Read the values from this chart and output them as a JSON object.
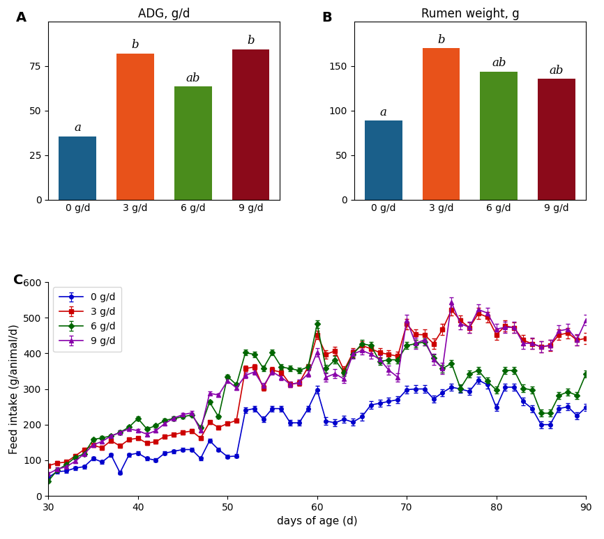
{
  "panel_A": {
    "title": "ADG, g/d",
    "categories": [
      "0 g/d",
      "3 g/d",
      "6 g/d",
      "9 g/d"
    ],
    "values": [
      35.5,
      82.0,
      63.5,
      84.5
    ],
    "colors": [
      "#1a5f8a",
      "#e8521a",
      "#4a8c1c",
      "#8b0a1a"
    ],
    "labels": [
      "a",
      "b",
      "ab",
      "b"
    ],
    "ylim": [
      0,
      100
    ],
    "yticks": [
      0,
      25,
      50,
      75
    ]
  },
  "panel_B": {
    "title": "Rumen weight, g",
    "categories": [
      "0 g/d",
      "3 g/d",
      "6 g/d",
      "9 g/d"
    ],
    "values": [
      89.0,
      170.0,
      144.0,
      136.0
    ],
    "colors": [
      "#1a5f8a",
      "#e8521a",
      "#4a8c1c",
      "#8b0a1a"
    ],
    "labels": [
      "a",
      "b",
      "ab",
      "ab"
    ],
    "ylim": [
      0,
      200
    ],
    "yticks": [
      0,
      50,
      100,
      150
    ]
  },
  "panel_C": {
    "ylabel": "Feed intake (g/animal/d)",
    "xlabel": "days of age (d)",
    "ylim": [
      0,
      600
    ],
    "yticks": [
      0,
      100,
      200,
      300,
      400,
      500,
      600
    ],
    "xlim": [
      30,
      90
    ],
    "xticks": [
      30,
      40,
      50,
      60,
      70,
      80,
      90
    ],
    "series": {
      "0 g/d": {
        "color": "#0000cc",
        "marker": "o",
        "days": [
          30,
          31,
          32,
          33,
          34,
          35,
          36,
          37,
          38,
          39,
          40,
          41,
          42,
          43,
          44,
          45,
          46,
          47,
          48,
          49,
          50,
          51,
          52,
          53,
          54,
          55,
          56,
          57,
          58,
          59,
          60,
          61,
          62,
          63,
          64,
          65,
          66,
          67,
          68,
          69,
          70,
          71,
          72,
          73,
          74,
          75,
          76,
          77,
          78,
          79,
          80,
          81,
          82,
          83,
          84,
          85,
          86,
          87,
          88,
          89,
          90
        ],
        "values": [
          52,
          68,
          70,
          78,
          82,
          105,
          95,
          115,
          65,
          115,
          120,
          105,
          100,
          120,
          125,
          130,
          130,
          105,
          155,
          130,
          110,
          112,
          240,
          245,
          215,
          245,
          245,
          205,
          205,
          245,
          298,
          210,
          205,
          215,
          207,
          222,
          255,
          260,
          265,
          270,
          298,
          300,
          300,
          272,
          290,
          305,
          300,
          293,
          325,
          312,
          248,
          305,
          305,
          265,
          245,
          200,
          200,
          245,
          250,
          225,
          248
        ],
        "errors": [
          5,
          5,
          5,
          5,
          5,
          5,
          5,
          5,
          5,
          5,
          5,
          5,
          5,
          5,
          5,
          5,
          5,
          5,
          5,
          5,
          5,
          5,
          8,
          8,
          8,
          8,
          8,
          8,
          8,
          8,
          10,
          10,
          10,
          10,
          10,
          10,
          10,
          10,
          10,
          10,
          10,
          10,
          10,
          10,
          10,
          10,
          10,
          10,
          10,
          10,
          10,
          10,
          10,
          10,
          10,
          10,
          10,
          10,
          10,
          10,
          10
        ]
      },
      "3 g/d": {
        "color": "#cc0000",
        "marker": "s",
        "days": [
          30,
          31,
          32,
          33,
          34,
          35,
          36,
          37,
          38,
          39,
          40,
          41,
          42,
          43,
          44,
          45,
          46,
          47,
          48,
          49,
          50,
          51,
          52,
          53,
          54,
          55,
          56,
          57,
          58,
          59,
          60,
          61,
          62,
          63,
          64,
          65,
          66,
          67,
          68,
          69,
          70,
          71,
          72,
          73,
          74,
          75,
          76,
          77,
          78,
          79,
          80,
          81,
          82,
          83,
          84,
          85,
          86,
          87,
          88,
          89,
          90
        ],
        "values": [
          85,
          92,
          95,
          112,
          130,
          142,
          135,
          155,
          140,
          158,
          162,
          148,
          152,
          167,
          172,
          178,
          182,
          162,
          207,
          192,
          203,
          212,
          357,
          362,
          303,
          353,
          347,
          313,
          317,
          362,
          452,
          397,
          407,
          352,
          402,
          422,
          413,
          402,
          397,
          392,
          482,
          453,
          452,
          427,
          467,
          522,
          492,
          472,
          512,
          502,
          452,
          477,
          472,
          437,
          427,
          418,
          422,
          452,
          457,
          437,
          442
        ],
        "errors": [
          5,
          5,
          5,
          5,
          5,
          5,
          5,
          5,
          5,
          5,
          5,
          5,
          5,
          5,
          5,
          5,
          5,
          5,
          5,
          5,
          5,
          5,
          8,
          8,
          8,
          8,
          8,
          8,
          8,
          8,
          12,
          12,
          12,
          12,
          12,
          12,
          12,
          12,
          12,
          12,
          15,
          15,
          15,
          15,
          15,
          15,
          15,
          15,
          15,
          15,
          15,
          15,
          15,
          15,
          15,
          15,
          15,
          15,
          15,
          15,
          15
        ]
      },
      "6 g/d": {
        "color": "#006600",
        "marker": "D",
        "days": [
          30,
          31,
          32,
          33,
          34,
          35,
          36,
          37,
          38,
          39,
          40,
          41,
          42,
          43,
          44,
          45,
          46,
          47,
          48,
          49,
          50,
          51,
          52,
          53,
          54,
          55,
          56,
          57,
          58,
          59,
          60,
          61,
          62,
          63,
          64,
          65,
          66,
          67,
          68,
          69,
          70,
          71,
          72,
          73,
          74,
          75,
          76,
          77,
          78,
          79,
          80,
          81,
          82,
          83,
          84,
          85,
          86,
          87,
          88,
          89,
          90
        ],
        "values": [
          42,
          72,
          88,
          108,
          118,
          158,
          163,
          168,
          178,
          193,
          217,
          188,
          197,
          212,
          217,
          222,
          227,
          192,
          263,
          222,
          335,
          312,
          402,
          397,
          358,
          402,
          362,
          357,
          352,
          362,
          482,
          357,
          382,
          347,
          397,
          427,
          422,
          377,
          382,
          382,
          422,
          427,
          432,
          387,
          357,
          372,
          302,
          342,
          352,
          322,
          297,
          352,
          352,
          302,
          297,
          232,
          232,
          282,
          292,
          282,
          342
        ],
        "errors": [
          5,
          5,
          5,
          5,
          5,
          5,
          5,
          5,
          5,
          5,
          5,
          5,
          5,
          5,
          5,
          5,
          5,
          5,
          5,
          5,
          5,
          5,
          8,
          8,
          8,
          8,
          8,
          8,
          8,
          8,
          10,
          10,
          10,
          10,
          10,
          10,
          10,
          10,
          10,
          10,
          10,
          10,
          10,
          10,
          10,
          10,
          10,
          10,
          10,
          10,
          10,
          10,
          10,
          10,
          10,
          10,
          10,
          10,
          10,
          10,
          10
        ]
      },
      "9 g/d": {
        "color": "#8800aa",
        "marker": "^",
        "days": [
          30,
          31,
          32,
          33,
          34,
          35,
          36,
          37,
          38,
          39,
          40,
          41,
          42,
          43,
          44,
          45,
          46,
          47,
          48,
          49,
          50,
          51,
          52,
          53,
          54,
          55,
          56,
          57,
          58,
          59,
          60,
          61,
          62,
          63,
          64,
          65,
          66,
          67,
          68,
          69,
          70,
          71,
          72,
          73,
          74,
          75,
          76,
          77,
          78,
          79,
          80,
          81,
          82,
          83,
          84,
          85,
          86,
          87,
          88,
          89,
          90
        ],
        "values": [
          62,
          75,
          82,
          97,
          118,
          143,
          153,
          168,
          178,
          188,
          183,
          173,
          183,
          203,
          218,
          228,
          233,
          183,
          288,
          283,
          323,
          303,
          338,
          348,
          308,
          348,
          333,
          313,
          318,
          343,
          403,
          333,
          343,
          328,
          398,
          408,
          398,
          383,
          353,
          333,
          493,
          428,
          438,
          383,
          358,
          543,
          483,
          473,
          523,
          513,
          468,
          473,
          473,
          428,
          428,
          418,
          423,
          463,
          468,
          438,
          493
        ],
        "errors": [
          5,
          5,
          5,
          5,
          5,
          5,
          5,
          5,
          5,
          5,
          5,
          5,
          5,
          5,
          5,
          5,
          5,
          5,
          5,
          5,
          5,
          5,
          8,
          8,
          8,
          8,
          8,
          8,
          8,
          8,
          12,
          12,
          12,
          12,
          12,
          12,
          12,
          12,
          12,
          12,
          15,
          15,
          15,
          15,
          15,
          15,
          15,
          15,
          15,
          15,
          15,
          15,
          15,
          15,
          15,
          15,
          15,
          15,
          15,
          15,
          15
        ]
      }
    }
  },
  "panel_labels": [
    "A",
    "B",
    "C"
  ],
  "panel_label_fontsize": 14,
  "title_fontsize": 12,
  "label_fontsize": 11,
  "tick_fontsize": 10,
  "bar_label_fontsize": 12
}
